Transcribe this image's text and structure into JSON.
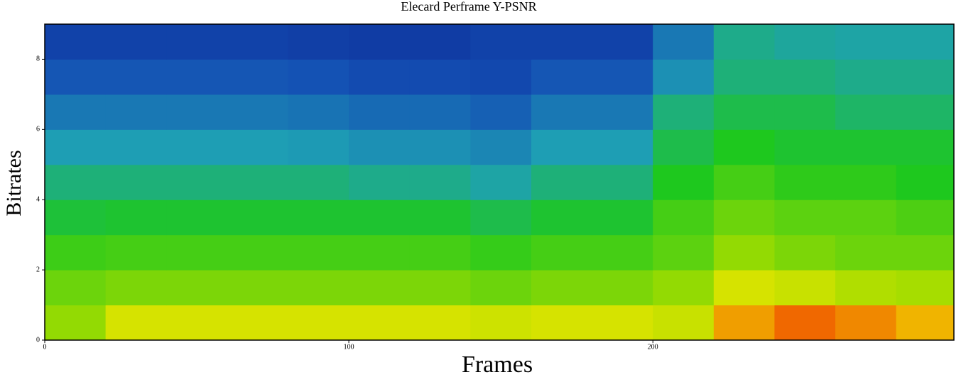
{
  "chart_data": {
    "type": "heatmap",
    "title": "Elecard Perframe Y-PSNR",
    "x_label": "Frames",
    "y_label": "Bitrates",
    "x": [
      10,
      30,
      50,
      70,
      90,
      110,
      130,
      150,
      170,
      190,
      210,
      230,
      250,
      270,
      290
    ],
    "y": [
      0.5,
      1.5,
      2.5,
      3.5,
      4.5,
      5.5,
      6.5,
      7.5,
      8.5
    ],
    "values": [
      [
        65,
        78,
        78,
        78,
        78,
        78,
        78,
        76,
        78,
        78,
        75,
        90,
        95,
        92,
        88
      ],
      [
        60,
        62,
        62,
        62,
        62,
        62,
        62,
        60,
        62,
        62,
        65,
        78,
        75,
        70,
        68
      ],
      [
        54,
        55,
        55,
        55,
        55,
        55,
        55,
        53,
        55,
        55,
        58,
        65,
        62,
        60,
        60
      ],
      [
        47,
        48,
        48,
        48,
        48,
        48,
        48,
        45,
        48,
        48,
        55,
        60,
        58,
        58,
        56
      ],
      [
        40,
        40,
        40,
        40,
        40,
        38,
        38,
        35,
        40,
        40,
        50,
        55,
        52,
        52,
        50
      ],
      [
        33,
        33,
        33,
        33,
        32,
        30,
        30,
        28,
        33,
        33,
        45,
        50,
        48,
        48,
        48
      ],
      [
        25,
        25,
        25,
        25,
        24,
        22,
        22,
        20,
        25,
        25,
        40,
        45,
        45,
        42,
        42
      ],
      [
        18,
        18,
        18,
        18,
        17,
        15,
        15,
        14,
        18,
        18,
        30,
        40,
        40,
        38,
        38
      ],
      [
        12,
        12,
        12,
        12,
        11,
        10,
        10,
        12,
        12,
        12,
        25,
        38,
        36,
        35,
        35
      ]
    ],
    "zlim": [
      0,
      100
    ],
    "colorscale": [
      "#0a1e8c",
      "#1450b4",
      "#1ea0b4",
      "#1ec81e",
      "#a0dc00",
      "#f0e600",
      "#f03200"
    ],
    "xlim": [
      0,
      299
    ],
    "xticks": [
      0,
      100,
      200
    ],
    "ylim": [
      0,
      9
    ],
    "yticks": [
      0,
      2,
      4,
      6,
      8
    ]
  }
}
